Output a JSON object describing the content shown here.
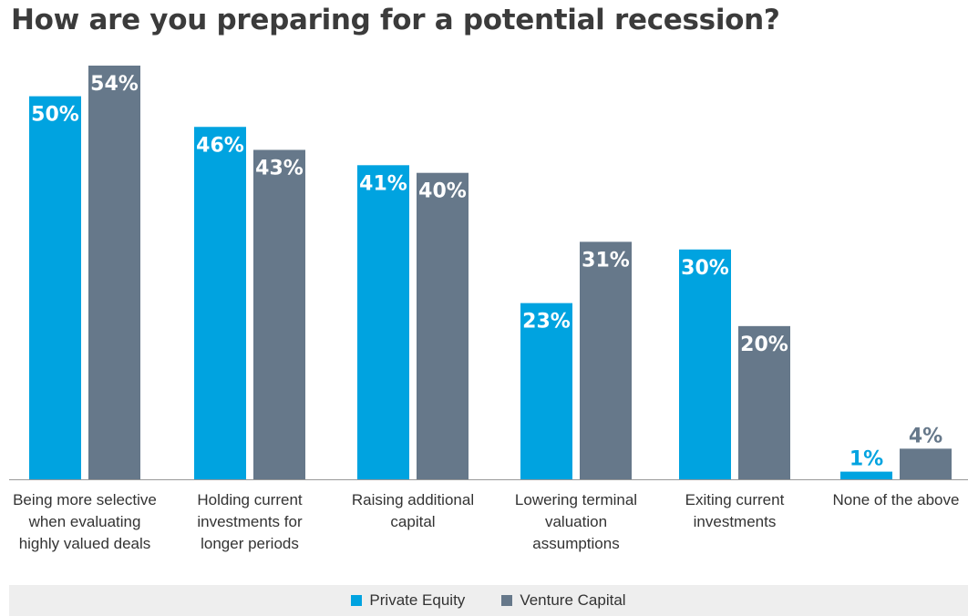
{
  "chart_data": {
    "type": "bar",
    "title": "How are you preparing for a potential recession?",
    "categories": [
      [
        "Being more selective",
        "when evaluating",
        "highly valued deals"
      ],
      [
        "Holding current",
        "investments for",
        "longer periods"
      ],
      [
        "Raising additional",
        "capital"
      ],
      [
        "Lowering terminal",
        "valuation",
        "assumptions"
      ],
      [
        "Exiting current",
        "investments"
      ],
      [
        "None of the above"
      ]
    ],
    "series": [
      {
        "name": "Private Equity",
        "color": "#00a3e0",
        "values": [
          50,
          46,
          41,
          23,
          30,
          1
        ]
      },
      {
        "name": "Venture Capital",
        "color": "#66788a",
        "values": [
          54,
          43,
          40,
          31,
          20,
          4
        ]
      }
    ],
    "value_suffix": "%",
    "ylim": [
      0,
      54
    ],
    "legend_position": "bottom-center",
    "grid": false
  }
}
